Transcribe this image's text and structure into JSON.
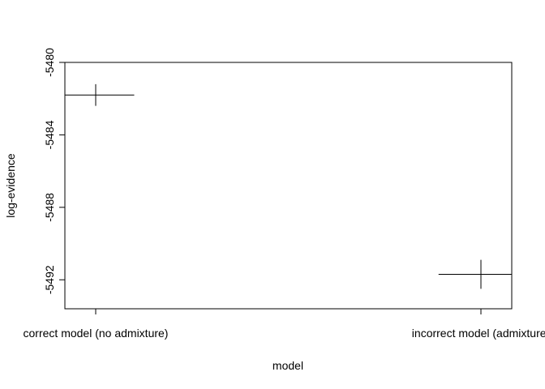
{
  "chart_data": {
    "type": "scatter",
    "title": "",
    "xlabel": "model",
    "ylabel": "log-evidence",
    "categories": [
      "correct model (no admixture)",
      "incorrect model (admixture)"
    ],
    "x": [
      1,
      2
    ],
    "values": [
      -5481.8,
      -5491.7
    ],
    "error_ranges": {
      "y": [
        [
          -5481.2,
          -5482.4
        ],
        [
          -5490.9,
          -5492.5
        ]
      ],
      "x": [
        [
          0.92,
          1.1
        ],
        [
          1.89,
          2.08
        ]
      ]
    },
    "xlim": [
      0.92,
      2.08
    ],
    "ylim": [
      -5493.6,
      -5480
    ],
    "y_ticks": [
      -5480,
      -5484,
      -5488,
      -5492
    ],
    "y_tick_labels": [
      "-5480",
      "-5484",
      "-5488",
      "-5492"
    ],
    "x_tick_labels": [
      "correct model (no admixture)",
      "incorrect model (admixture)"
    ],
    "grid": false,
    "legend": "none",
    "colors": {
      "axis": "#000000",
      "marks": "#000000",
      "background": "#ffffff"
    }
  }
}
